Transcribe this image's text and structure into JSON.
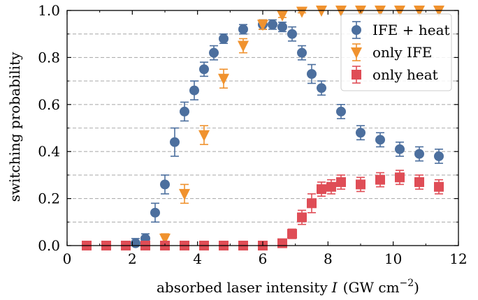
{
  "chart_data": {
    "type": "scatter",
    "xlabel": "absorbed laser intensity",
    "xlabel_symbol": "I",
    "xlabel_unit": "(GW cm",
    "xlabel_unit_exp": "−2",
    "xlabel_unit_close": ")",
    "ylabel": "switching probability",
    "xlim": [
      0,
      12
    ],
    "ylim": [
      0,
      1
    ],
    "xticks": [
      "0",
      "2",
      "4",
      "6",
      "8",
      "10",
      "12"
    ],
    "yticks": [
      "0.0",
      "0.2",
      "0.4",
      "0.6",
      "0.8",
      "1.0"
    ],
    "grid": "horizontal dashed",
    "legend_position": "top-right",
    "series": [
      {
        "name": "IFE + heat",
        "marker": "circle",
        "color": "#4c6f9e",
        "points": [
          {
            "x": 2.1,
            "y": 0.01,
            "err": 0.02
          },
          {
            "x": 2.4,
            "y": 0.03,
            "err": 0.02
          },
          {
            "x": 2.7,
            "y": 0.14,
            "err": 0.04
          },
          {
            "x": 3.0,
            "y": 0.26,
            "err": 0.04
          },
          {
            "x": 3.3,
            "y": 0.44,
            "err": 0.06
          },
          {
            "x": 3.6,
            "y": 0.57,
            "err": 0.04
          },
          {
            "x": 3.9,
            "y": 0.66,
            "err": 0.04
          },
          {
            "x": 4.2,
            "y": 0.75,
            "err": 0.03
          },
          {
            "x": 4.5,
            "y": 0.82,
            "err": 0.03
          },
          {
            "x": 4.8,
            "y": 0.88,
            "err": 0.02
          },
          {
            "x": 5.4,
            "y": 0.92,
            "err": 0.02
          },
          {
            "x": 6.0,
            "y": 0.94,
            "err": 0.02
          },
          {
            "x": 6.3,
            "y": 0.94,
            "err": 0.02
          },
          {
            "x": 6.6,
            "y": 0.93,
            "err": 0.02
          },
          {
            "x": 6.9,
            "y": 0.9,
            "err": 0.03
          },
          {
            "x": 7.2,
            "y": 0.82,
            "err": 0.03
          },
          {
            "x": 7.5,
            "y": 0.73,
            "err": 0.04
          },
          {
            "x": 7.8,
            "y": 0.67,
            "err": 0.03
          },
          {
            "x": 8.4,
            "y": 0.57,
            "err": 0.03
          },
          {
            "x": 9.0,
            "y": 0.48,
            "err": 0.03
          },
          {
            "x": 9.6,
            "y": 0.45,
            "err": 0.03
          },
          {
            "x": 10.2,
            "y": 0.41,
            "err": 0.03
          },
          {
            "x": 10.8,
            "y": 0.39,
            "err": 0.03
          },
          {
            "x": 11.4,
            "y": 0.38,
            "err": 0.03
          }
        ]
      },
      {
        "name": "only IFE",
        "marker": "triangle-down",
        "color": "#f0922e",
        "points": [
          {
            "x": 3.0,
            "y": 0.03,
            "err": 0.02
          },
          {
            "x": 3.6,
            "y": 0.22,
            "err": 0.04
          },
          {
            "x": 4.2,
            "y": 0.47,
            "err": 0.04
          },
          {
            "x": 4.8,
            "y": 0.71,
            "err": 0.04
          },
          {
            "x": 5.4,
            "y": 0.85,
            "err": 0.03
          },
          {
            "x": 6.0,
            "y": 0.94,
            "err": 0.02
          },
          {
            "x": 6.6,
            "y": 0.98,
            "err": 0.01
          },
          {
            "x": 7.2,
            "y": 0.995,
            "err": 0.005
          },
          {
            "x": 7.8,
            "y": 1.0,
            "err": 0.0
          },
          {
            "x": 8.4,
            "y": 1.0,
            "err": 0.0
          },
          {
            "x": 9.0,
            "y": 1.0,
            "err": 0.0
          },
          {
            "x": 9.6,
            "y": 1.0,
            "err": 0.0
          },
          {
            "x": 10.2,
            "y": 1.0,
            "err": 0.0
          },
          {
            "x": 10.8,
            "y": 1.0,
            "err": 0.0
          },
          {
            "x": 11.4,
            "y": 1.0,
            "err": 0.0
          }
        ]
      },
      {
        "name": "only heat",
        "marker": "square",
        "color": "#df4d56",
        "points": [
          {
            "x": 0.6,
            "y": 0.0,
            "err": 0.0
          },
          {
            "x": 1.2,
            "y": 0.0,
            "err": 0.0
          },
          {
            "x": 1.8,
            "y": 0.0,
            "err": 0.0
          },
          {
            "x": 2.4,
            "y": 0.0,
            "err": 0.0
          },
          {
            "x": 3.0,
            "y": 0.0,
            "err": 0.0
          },
          {
            "x": 3.6,
            "y": 0.0,
            "err": 0.0
          },
          {
            "x": 4.2,
            "y": 0.0,
            "err": 0.0
          },
          {
            "x": 4.8,
            "y": 0.0,
            "err": 0.0
          },
          {
            "x": 5.4,
            "y": 0.0,
            "err": 0.0
          },
          {
            "x": 6.0,
            "y": 0.0,
            "err": 0.0
          },
          {
            "x": 6.6,
            "y": 0.01,
            "err": 0.01
          },
          {
            "x": 6.9,
            "y": 0.05,
            "err": 0.02
          },
          {
            "x": 7.2,
            "y": 0.12,
            "err": 0.03
          },
          {
            "x": 7.5,
            "y": 0.18,
            "err": 0.04
          },
          {
            "x": 7.8,
            "y": 0.24,
            "err": 0.03
          },
          {
            "x": 8.1,
            "y": 0.25,
            "err": 0.03
          },
          {
            "x": 8.4,
            "y": 0.27,
            "err": 0.03
          },
          {
            "x": 9.0,
            "y": 0.26,
            "err": 0.03
          },
          {
            "x": 9.6,
            "y": 0.28,
            "err": 0.03
          },
          {
            "x": 10.2,
            "y": 0.29,
            "err": 0.03
          },
          {
            "x": 10.8,
            "y": 0.27,
            "err": 0.03
          },
          {
            "x": 11.4,
            "y": 0.25,
            "err": 0.03
          }
        ]
      }
    ]
  }
}
